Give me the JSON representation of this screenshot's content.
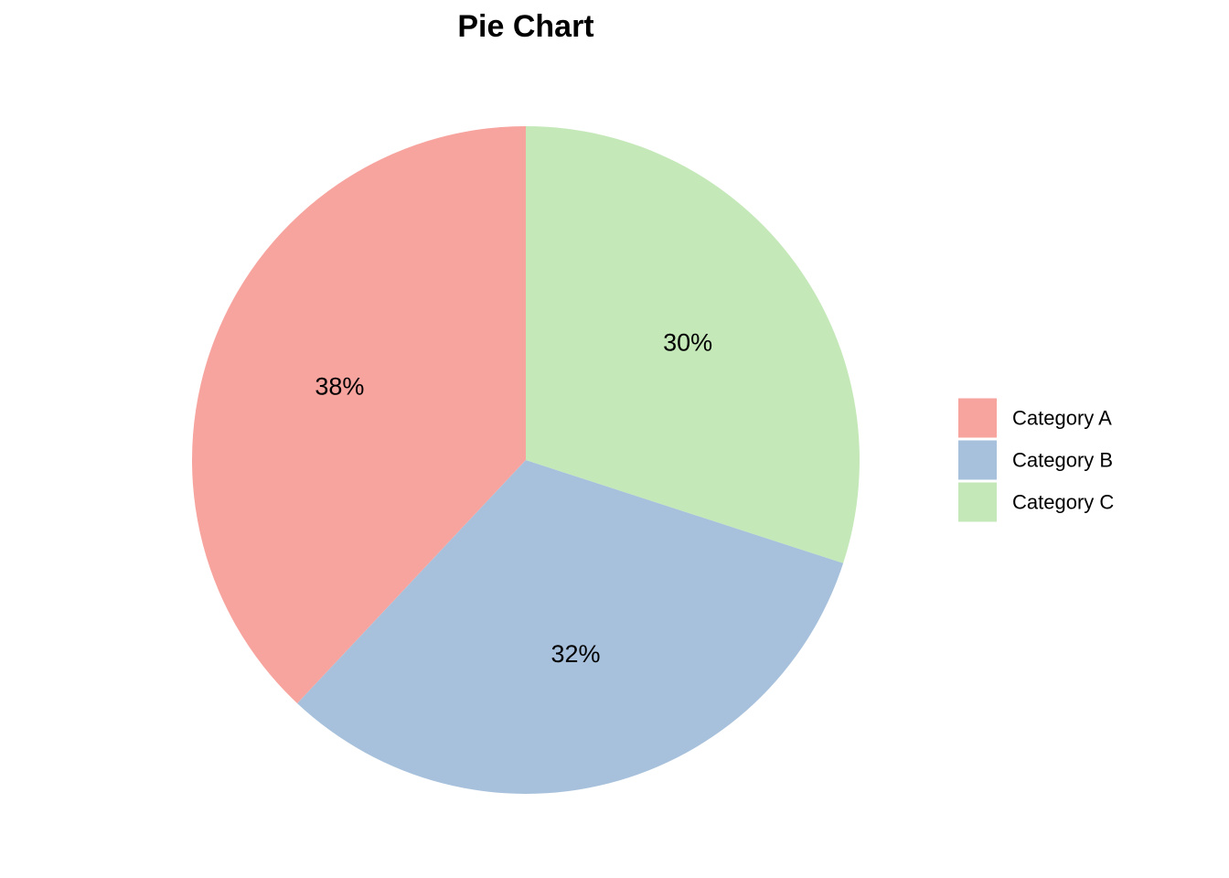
{
  "chart_data": {
    "type": "pie",
    "title": "Pie Chart",
    "categories": [
      "Category A",
      "Category B",
      "Category C"
    ],
    "values": [
      38,
      32,
      30
    ],
    "labels": [
      "38%",
      "32%",
      "30%"
    ],
    "colors": [
      "#f7a49f",
      "#a7c1dc",
      "#c4e8b8"
    ],
    "start": "12 o'clock",
    "direction": "counterclockwise",
    "legend": {
      "position": "right",
      "entries": [
        "Category A",
        "Category B",
        "Category C"
      ]
    }
  }
}
